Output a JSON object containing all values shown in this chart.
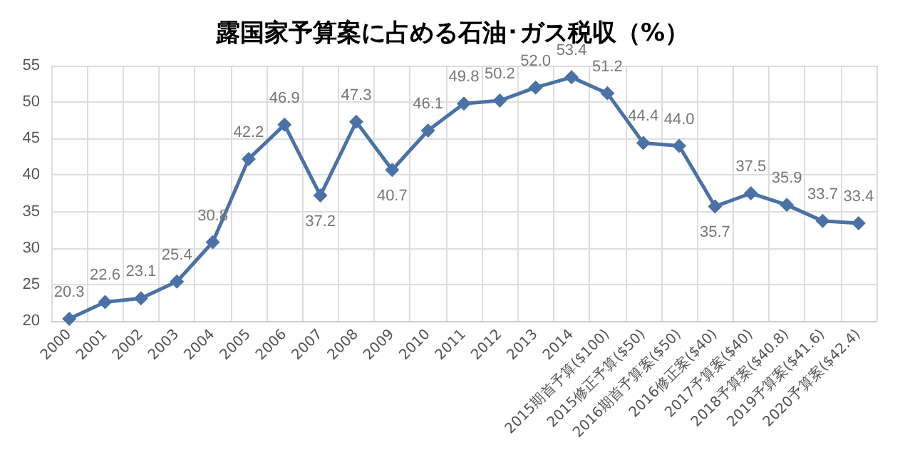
{
  "chart_data": {
    "type": "line",
    "title": "露国家予算案に占める石油･ガス税収（%）",
    "categories": [
      "2000",
      "2001",
      "2002",
      "2003",
      "2004",
      "2005",
      "2006",
      "2007",
      "2008",
      "2009",
      "2010",
      "2011",
      "2012",
      "2013",
      "2014",
      "2015期首予算($100)",
      "2015修正予算($50)",
      "2016期首予算案($50)",
      "2016修正案($40)",
      "2017予算案($40)",
      "2018予算案($40.8)",
      "2019予算案($41.6)",
      "2020予算案($42.4)"
    ],
    "series": [
      {
        "color": "#4a72a6",
        "values": [
          20.3,
          22.6,
          23.1,
          25.4,
          30.8,
          42.2,
          46.9,
          37.2,
          47.3,
          40.7,
          46.1,
          49.8,
          50.2,
          52.0,
          53.4,
          51.2,
          44.4,
          44.0,
          35.7,
          37.5,
          35.9,
          33.7,
          33.4
        ],
        "value_labels": [
          "20.3",
          "22.6",
          "23.1",
          "25.4",
          "30.8",
          "42.2",
          "46.9",
          "37.2",
          "47.3",
          "40.7",
          "46.1",
          "49.8",
          "50.2",
          "52.0",
          "53.4",
          "51.2",
          "44.4",
          "44.0",
          "35.7",
          "37.5",
          "35.9",
          "33.7",
          "33.4"
        ]
      }
    ],
    "ylim": [
      20,
      55
    ],
    "yticks": [
      20,
      25,
      30,
      35,
      40,
      45,
      50,
      55
    ],
    "grid": true,
    "marker": "diamond",
    "line_style": "solid"
  }
}
